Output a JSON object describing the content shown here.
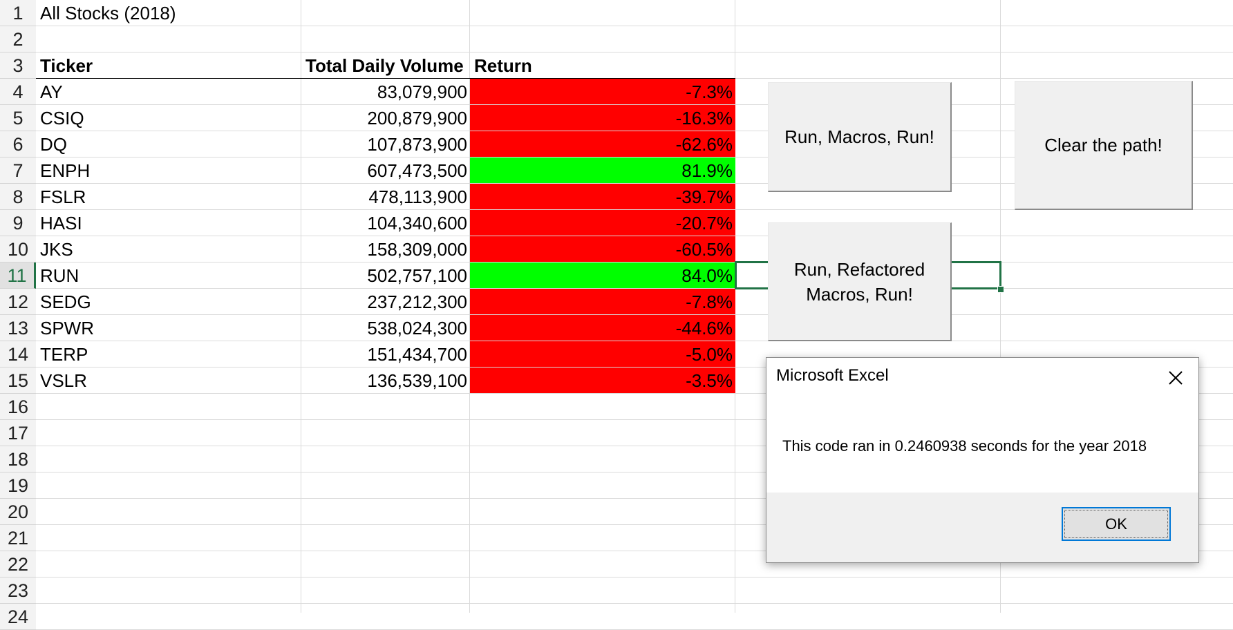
{
  "sheet": {
    "rows": [
      "1",
      "2",
      "3",
      "4",
      "5",
      "6",
      "7",
      "8",
      "9",
      "10",
      "11",
      "12",
      "13",
      "14",
      "15",
      "16",
      "17",
      "18",
      "19",
      "20",
      "21",
      "22",
      "23",
      "24"
    ],
    "title": "All Stocks (2018)",
    "headers": {
      "ticker": "Ticker",
      "volume": "Total Daily Volume",
      "return": "Return"
    },
    "data": [
      {
        "ticker": "AY",
        "volume": "83,079,900",
        "return": "-7.3%",
        "status": "neg"
      },
      {
        "ticker": "CSIQ",
        "volume": "200,879,900",
        "return": "-16.3%",
        "status": "neg"
      },
      {
        "ticker": "DQ",
        "volume": "107,873,900",
        "return": "-62.6%",
        "status": "neg"
      },
      {
        "ticker": "ENPH",
        "volume": "607,473,500",
        "return": "81.9%",
        "status": "pos"
      },
      {
        "ticker": "FSLR",
        "volume": "478,113,900",
        "return": "-39.7%",
        "status": "neg"
      },
      {
        "ticker": "HASI",
        "volume": "104,340,600",
        "return": "-20.7%",
        "status": "neg"
      },
      {
        "ticker": "JKS",
        "volume": "158,309,000",
        "return": "-60.5%",
        "status": "neg"
      },
      {
        "ticker": "RUN",
        "volume": "502,757,100",
        "return": "84.0%",
        "status": "pos"
      },
      {
        "ticker": "SEDG",
        "volume": "237,212,300",
        "return": "-7.8%",
        "status": "neg"
      },
      {
        "ticker": "SPWR",
        "volume": "538,024,300",
        "return": "-44.6%",
        "status": "neg"
      },
      {
        "ticker": "TERP",
        "volume": "151,434,700",
        "return": "-5.0%",
        "status": "neg"
      },
      {
        "ticker": "VSLR",
        "volume": "136,539,100",
        "return": "-3.5%",
        "status": "neg"
      }
    ],
    "selected_row": "11"
  },
  "buttons": {
    "run_macros": "Run, Macros, Run!",
    "clear_path": "Clear the path!",
    "run_refactored_line1": "Run, Refactored",
    "run_refactored_line2": "Macros, Run!"
  },
  "dialog": {
    "title": "Microsoft Excel",
    "message": "This code ran in 0.2460938 seconds for the year 2018",
    "ok_label": "OK",
    "close_icon": "close-icon"
  },
  "colors": {
    "negative": "#ff0000",
    "positive": "#00ff00",
    "selection": "#217346"
  }
}
